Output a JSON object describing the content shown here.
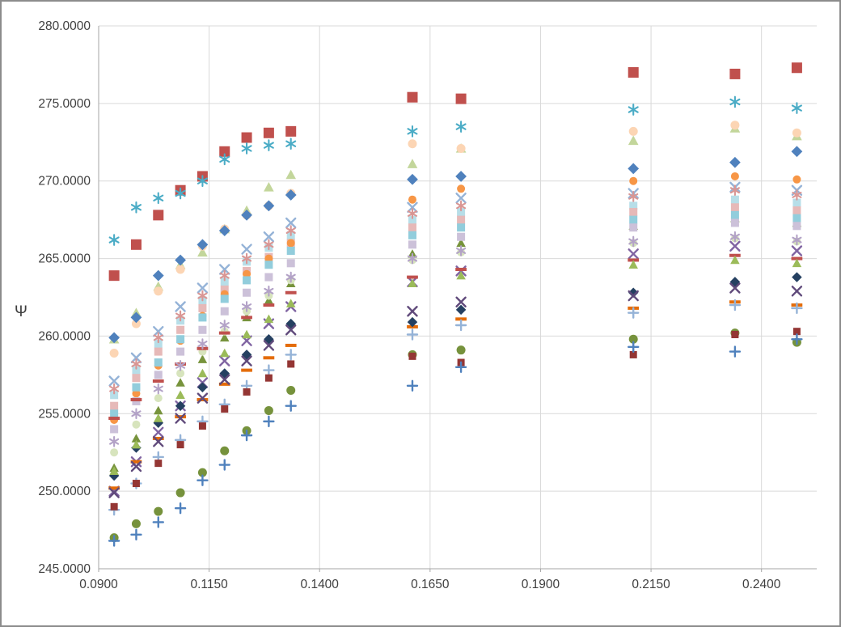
{
  "chart_data": {
    "type": "scatter",
    "title": "",
    "xlabel": "",
    "ylabel": "Ψ",
    "xlim": [
      0.09,
      0.2525
    ],
    "ylim": [
      245,
      280
    ],
    "grid": true,
    "legend": "none",
    "axis_color": "#a6a6a6",
    "grid_color": "#d9d9d9",
    "tick_label_color": "#3f3f3f",
    "x_ticks": [
      0.09,
      0.115,
      0.14,
      0.165,
      0.19,
      0.215,
      0.24
    ],
    "x_tick_labels": [
      "0.0900",
      "0.1150",
      "0.1400",
      "0.1650",
      "0.1900",
      "0.2150",
      "0.2400"
    ],
    "y_ticks": [
      245,
      250,
      255,
      260,
      265,
      270,
      275,
      280
    ],
    "y_tick_labels": [
      "245.0000",
      "250.0000",
      "255.0000",
      "260.0000",
      "265.0000",
      "270.0000",
      "275.0000",
      "280.0000"
    ],
    "x": [
      0.0935,
      0.0985,
      0.1035,
      0.1085,
      0.1135,
      0.1185,
      0.1235,
      0.1285,
      0.1335,
      0.161,
      0.172,
      0.211,
      0.234,
      0.248
    ],
    "series": [
      {
        "marker": "square",
        "color": "#C0504D",
        "size": 13,
        "y": [
          263.9,
          265.9,
          267.8,
          269.4,
          270.3,
          271.9,
          272.8,
          273.1,
          273.2,
          275.4,
          275.3,
          277.0,
          276.9,
          277.3
        ]
      },
      {
        "marker": "asterisk",
        "color": "#4BACC6",
        "size": 12,
        "y": [
          266.2,
          268.3,
          268.9,
          269.2,
          270.0,
          271.4,
          272.1,
          272.3,
          272.4,
          273.2,
          273.5,
          274.6,
          275.1,
          274.7
        ]
      },
      {
        "marker": "triangle",
        "color": "#C3D69B",
        "size": 11,
        "y": [
          259.8,
          261.5,
          263.2,
          264.6,
          265.4,
          266.9,
          268.1,
          269.6,
          270.4,
          271.1,
          272.1,
          272.6,
          273.4,
          272.9
        ]
      },
      {
        "marker": "circle",
        "color": "#FCD5B4",
        "size": 11,
        "y": [
          258.9,
          260.8,
          262.9,
          264.3,
          265.8,
          266.9,
          267.8,
          268.4,
          269.2,
          272.4,
          272.1,
          273.2,
          273.6,
          273.1
        ]
      },
      {
        "marker": "x",
        "color": "#95B3D7",
        "size": 11,
        "y": [
          257.1,
          258.6,
          260.3,
          261.9,
          263.1,
          264.3,
          265.6,
          266.4,
          267.3,
          268.3,
          268.9,
          269.2,
          269.6,
          269.4
        ]
      },
      {
        "marker": "square",
        "color": "#B7DEE8",
        "size": 10,
        "y": [
          256.2,
          257.8,
          259.5,
          261.0,
          262.3,
          263.5,
          264.8,
          265.7,
          266.5,
          267.5,
          268.0,
          268.4,
          268.8,
          268.6
        ]
      },
      {
        "marker": "diamond",
        "color": "#4F81BD",
        "size": 11,
        "y": [
          259.9,
          261.2,
          263.9,
          264.9,
          265.9,
          266.8,
          267.8,
          268.4,
          269.1,
          270.1,
          270.3,
          270.8,
          271.2,
          271.9
        ]
      },
      {
        "marker": "asterisk",
        "color": "#D99694",
        "size": 11,
        "y": [
          256.6,
          258.2,
          259.9,
          261.3,
          262.6,
          263.9,
          265.0,
          265.9,
          266.8,
          267.9,
          268.4,
          269.0,
          269.4,
          269.1
        ]
      },
      {
        "marker": "square",
        "color": "#E6B9B8",
        "size": 10,
        "y": [
          255.5,
          257.3,
          259.0,
          260.4,
          261.8,
          263.0,
          264.2,
          265.1,
          266.0,
          267.0,
          267.5,
          268.0,
          268.3,
          268.1
        ]
      },
      {
        "marker": "circle",
        "color": "#F79646",
        "size": 10,
        "y": [
          254.6,
          256.3,
          258.1,
          259.7,
          261.3,
          262.7,
          264.0,
          265.0,
          266.0,
          268.8,
          269.5,
          270.0,
          270.3,
          270.1
        ]
      },
      {
        "marker": "triangle",
        "color": "#77933C",
        "size": 10,
        "y": [
          251.5,
          253.4,
          255.2,
          257.0,
          258.5,
          259.9,
          261.2,
          262.3,
          263.4,
          265.3,
          266.0,
          267.1,
          267.6,
          267.3
        ]
      },
      {
        "marker": "x",
        "color": "#8064A2",
        "size": 11,
        "y": [
          250.0,
          251.9,
          253.8,
          255.5,
          257.0,
          258.4,
          259.7,
          260.8,
          261.9,
          263.5,
          264.2,
          265.3,
          265.8,
          265.5
        ]
      },
      {
        "marker": "square",
        "color": "#92CDDC",
        "size": 10,
        "y": [
          255.0,
          256.7,
          258.3,
          259.8,
          261.2,
          262.4,
          263.6,
          264.6,
          265.5,
          266.5,
          267.0,
          267.5,
          267.8,
          267.6
        ]
      },
      {
        "marker": "dash",
        "color": "#E46C0A",
        "size": 11,
        "y": [
          250.2,
          251.9,
          253.4,
          254.8,
          255.9,
          256.9,
          257.8,
          258.6,
          259.4,
          260.6,
          261.1,
          261.8,
          262.2,
          262.0
        ]
      },
      {
        "marker": "circle",
        "color": "#D7E4BD",
        "size": 10,
        "y": [
          252.5,
          254.3,
          256.0,
          257.6,
          259.0,
          260.3,
          261.6,
          262.6,
          263.6,
          264.9,
          265.4,
          266.0,
          266.3,
          266.1
        ]
      },
      {
        "marker": "square",
        "color": "#CCC1D9",
        "size": 10,
        "y": [
          254.0,
          255.8,
          257.5,
          259.0,
          260.4,
          261.6,
          262.8,
          263.8,
          264.7,
          265.9,
          266.4,
          267.0,
          267.3,
          267.1
        ]
      },
      {
        "marker": "diamond",
        "color": "#254061",
        "size": 10,
        "y": [
          251.0,
          252.8,
          254.4,
          255.5,
          256.7,
          257.6,
          258.8,
          259.8,
          260.8,
          260.9,
          261.7,
          262.8,
          263.5,
          263.8
        ]
      },
      {
        "marker": "x",
        "color": "#604A7B",
        "size": 11,
        "y": [
          249.9,
          251.6,
          253.2,
          254.7,
          256.0,
          257.2,
          258.4,
          259.4,
          260.4,
          261.6,
          262.2,
          262.6,
          263.1,
          262.9
        ]
      },
      {
        "marker": "plus",
        "color": "#95B3D7",
        "size": 12,
        "y": [
          248.8,
          250.5,
          252.2,
          253.3,
          254.5,
          255.6,
          256.8,
          257.8,
          258.8,
          260.1,
          260.7,
          261.5,
          262.0,
          261.8
        ]
      },
      {
        "marker": "dash",
        "color": "#C0504D",
        "size": 11,
        "y": [
          254.7,
          255.9,
          257.1,
          258.2,
          259.2,
          260.2,
          261.2,
          262.0,
          262.8,
          263.8,
          264.3,
          264.9,
          265.2,
          265.0
        ]
      },
      {
        "marker": "circle",
        "color": "#76923C",
        "size": 11,
        "y": [
          247.0,
          247.9,
          248.7,
          249.9,
          251.2,
          252.6,
          253.9,
          255.2,
          256.5,
          258.8,
          259.1,
          259.8,
          260.2,
          259.6
        ]
      },
      {
        "marker": "square",
        "color": "#943634",
        "size": 9,
        "y": [
          249.0,
          250.5,
          251.8,
          253.0,
          254.2,
          255.3,
          256.4,
          257.3,
          258.2,
          258.7,
          258.3,
          258.8,
          260.1,
          260.3
        ]
      },
      {
        "marker": "plus",
        "color": "#4F81BD",
        "size": 12,
        "y": [
          246.8,
          247.2,
          248.0,
          248.9,
          250.7,
          251.7,
          253.6,
          254.5,
          255.5,
          256.8,
          258.0,
          259.3,
          259.0,
          259.8
        ]
      },
      {
        "marker": "triangle",
        "color": "#9BBB59",
        "size": 10,
        "y": [
          251.3,
          253.0,
          254.7,
          256.2,
          257.6,
          258.9,
          260.1,
          261.1,
          262.1,
          263.4,
          263.9,
          264.6,
          264.9,
          264.7
        ]
      },
      {
        "marker": "asterisk",
        "color": "#B3A2C7",
        "size": 11,
        "y": [
          253.2,
          255.0,
          256.6,
          258.1,
          259.5,
          260.7,
          261.9,
          262.9,
          263.8,
          265.0,
          265.5,
          266.1,
          266.4,
          266.2
        ]
      }
    ]
  }
}
